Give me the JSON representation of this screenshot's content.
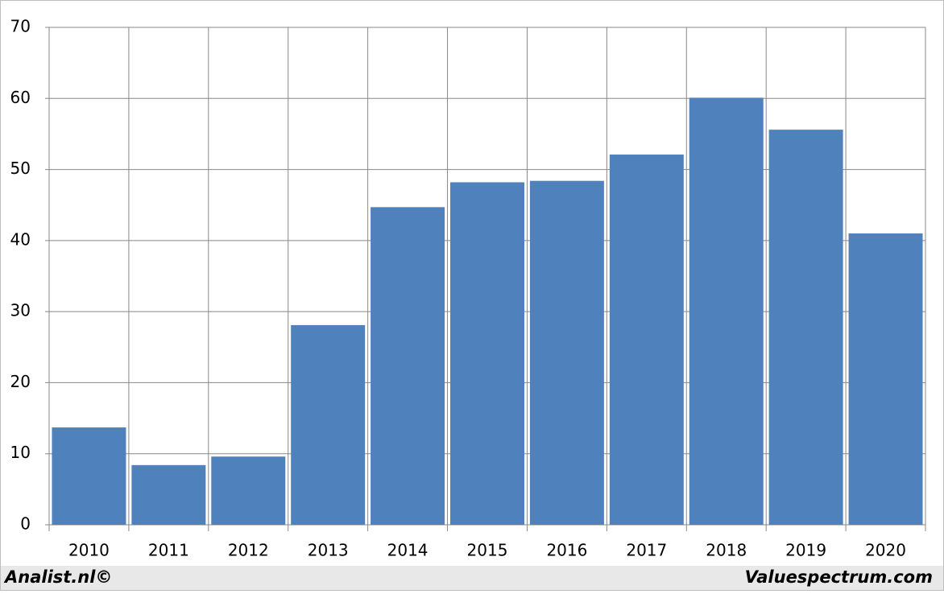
{
  "chart_data": {
    "type": "bar",
    "categories": [
      "2010",
      "2011",
      "2012",
      "2013",
      "2014",
      "2015",
      "2016",
      "2017",
      "2018",
      "2019",
      "2020"
    ],
    "values": [
      13.7,
      8.4,
      9.6,
      28.1,
      44.7,
      48.2,
      48.4,
      52.1,
      60.1,
      55.6,
      41.0
    ],
    "color": "#4f81bd",
    "ylim": [
      0,
      70
    ],
    "yticks": [
      0,
      10,
      20,
      30,
      40,
      50,
      60,
      70
    ],
    "grid": true,
    "footer_left": "Analist.nl©",
    "footer_right": "Valuespectrum.com"
  }
}
